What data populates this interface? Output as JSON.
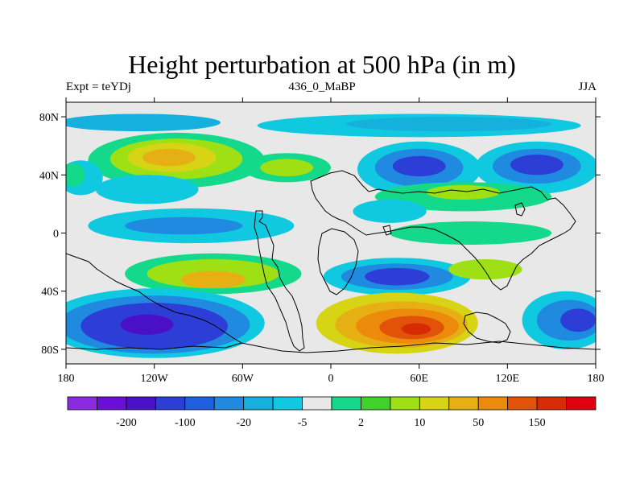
{
  "title": "Height perturbation at 500 hPa (in m)",
  "left_label": "Expt = teYDj",
  "center_label": "436_0_MaBP",
  "right_label": "JJA",
  "map": {
    "lon_range": [
      -180,
      180
    ],
    "lat_range": [
      -90,
      90
    ],
    "lon_ticks": [
      {
        "value": -180,
        "label": "180"
      },
      {
        "value": -120,
        "label": "120W"
      },
      {
        "value": -60,
        "label": "60W"
      },
      {
        "value": 0,
        "label": "0"
      },
      {
        "value": 60,
        "label": "60E"
      },
      {
        "value": 120,
        "label": "120E"
      },
      {
        "value": 180,
        "label": "180"
      }
    ],
    "lat_ticks": [
      {
        "value": 80,
        "label": "80N"
      },
      {
        "value": 40,
        "label": "40N"
      },
      {
        "value": 0,
        "label": "0"
      },
      {
        "value": -40,
        "label": "40S"
      },
      {
        "value": -80,
        "label": "80S"
      }
    ],
    "background_color": "#e8e8e8"
  },
  "colorbar": {
    "colors": [
      "#8a2be2",
      "#6a0fd8",
      "#4a10c8",
      "#2c3ed6",
      "#1f5fe0",
      "#1f8ae0",
      "#16b0dc",
      "#10c8e0",
      "#e8e8e8",
      "#14d98a",
      "#40d228",
      "#9ee014",
      "#d6d414",
      "#e6b014",
      "#ec8a0c",
      "#e25208",
      "#d82a04",
      "#e00010"
    ],
    "labels": [
      {
        "label": "-200",
        "after_box": 1
      },
      {
        "label": "-100",
        "after_box": 3
      },
      {
        "label": "-20",
        "after_box": 5
      },
      {
        "label": "-5",
        "after_box": 7
      },
      {
        "label": "2",
        "after_box": 9
      },
      {
        "label": "10",
        "after_box": 11
      },
      {
        "label": "50",
        "after_box": 13
      },
      {
        "label": "150",
        "after_box": 15
      }
    ]
  },
  "regions": [
    {
      "name": "n-arctic-band",
      "color": "#16b0dc",
      "lon": -130,
      "lat": 76,
      "rx": 55,
      "ry": 6
    },
    {
      "name": "n-arctic-band-east",
      "color": "#10c8e0",
      "lon": 60,
      "lat": 74,
      "rx": 110,
      "ry": 8
    },
    {
      "name": "n-arctic-band-east-inner",
      "color": "#16b0dc",
      "lon": 80,
      "lat": 75,
      "rx": 70,
      "ry": 5
    },
    {
      "name": "npac-ridge-outer",
      "color": "#14d98a",
      "lon": -105,
      "lat": 50,
      "rx": 60,
      "ry": 19
    },
    {
      "name": "npac-ridge-mid",
      "color": "#9ee014",
      "lon": -105,
      "lat": 51,
      "rx": 45,
      "ry": 14
    },
    {
      "name": "npac-ridge-inner",
      "color": "#d6d414",
      "lon": -108,
      "lat": 52,
      "rx": 30,
      "ry": 10
    },
    {
      "name": "npac-ridge-core",
      "color": "#e6b014",
      "lon": -110,
      "lat": 52,
      "rx": 18,
      "ry": 6
    },
    {
      "name": "natl-ridge",
      "color": "#14d98a",
      "lon": -30,
      "lat": 45,
      "rx": 30,
      "ry": 10
    },
    {
      "name": "natl-ridge-inner",
      "color": "#9ee014",
      "lon": -30,
      "lat": 45,
      "rx": 18,
      "ry": 6
    },
    {
      "name": "eur-trough-outer",
      "color": "#10c8e0",
      "lon": 60,
      "lat": 44,
      "rx": 42,
      "ry": 19
    },
    {
      "name": "eur-trough-mid",
      "color": "#1f8ae0",
      "lon": 60,
      "lat": 45,
      "rx": 30,
      "ry": 13
    },
    {
      "name": "eur-trough-core",
      "color": "#2c3ed6",
      "lon": 60,
      "lat": 46,
      "rx": 18,
      "ry": 7
    },
    {
      "name": "asia-trough-outer",
      "color": "#10c8e0",
      "lon": 140,
      "lat": 45,
      "rx": 42,
      "ry": 18
    },
    {
      "name": "asia-trough-mid",
      "color": "#1f8ae0",
      "lon": 140,
      "lat": 46,
      "rx": 30,
      "ry": 12
    },
    {
      "name": "asia-trough-core",
      "color": "#2c3ed6",
      "lon": 140,
      "lat": 47,
      "rx": 18,
      "ry": 7
    },
    {
      "name": "asia-subtrop-ridge",
      "color": "#14d98a",
      "lon": 90,
      "lat": 25,
      "rx": 60,
      "ry": 10
    },
    {
      "name": "asia-subtrop-ridge-inner",
      "color": "#9ee014",
      "lon": 90,
      "lat": 28,
      "rx": 25,
      "ry": 5
    },
    {
      "name": "w-nam-trough",
      "color": "#10c8e0",
      "lon": -170,
      "lat": 38,
      "rx": 15,
      "ry": 12
    },
    {
      "name": "w-nam-ridge",
      "color": "#14d98a",
      "lon": -175,
      "lat": 40,
      "rx": 8,
      "ry": 8
    },
    {
      "name": "npac-sub-trough",
      "color": "#10c8e0",
      "lon": -125,
      "lat": 30,
      "rx": 35,
      "ry": 10
    },
    {
      "name": "tropic-band",
      "color": "#10c8e0",
      "lon": -95,
      "lat": 5,
      "rx": 70,
      "ry": 12
    },
    {
      "name": "tropic-band-inner",
      "color": "#1f8ae0",
      "lon": -100,
      "lat": 5,
      "rx": 40,
      "ry": 6
    },
    {
      "name": "tropic-east",
      "color": "#10c8e0",
      "lon": 40,
      "lat": 15,
      "rx": 25,
      "ry": 8
    },
    {
      "name": "tropic-east-green",
      "color": "#14d98a",
      "lon": 95,
      "lat": 0,
      "rx": 55,
      "ry": 8
    },
    {
      "name": "s-mid-ridge-outer",
      "color": "#14d98a",
      "lon": -80,
      "lat": -28,
      "rx": 60,
      "ry": 14
    },
    {
      "name": "s-mid-ridge-mid",
      "color": "#9ee014",
      "lon": -80,
      "lat": -28,
      "rx": 45,
      "ry": 10
    },
    {
      "name": "s-mid-ridge-inner",
      "color": "#e6b014",
      "lon": -80,
      "lat": -32,
      "rx": 22,
      "ry": 6
    },
    {
      "name": "s-atl-trough-outer",
      "color": "#10c8e0",
      "lon": 45,
      "lat": -30,
      "rx": 50,
      "ry": 13
    },
    {
      "name": "s-atl-trough-mid",
      "color": "#1f8ae0",
      "lon": 45,
      "lat": -30,
      "rx": 38,
      "ry": 9
    },
    {
      "name": "s-atl-trough-core",
      "color": "#2c3ed6",
      "lon": 45,
      "lat": -30,
      "rx": 22,
      "ry": 6
    },
    {
      "name": "s-ind-ridge",
      "color": "#9ee014",
      "lon": 105,
      "lat": -25,
      "rx": 25,
      "ry": 7
    },
    {
      "name": "s-pac-trough-outer",
      "color": "#10c8e0",
      "lon": -120,
      "lat": -62,
      "rx": 75,
      "ry": 24
    },
    {
      "name": "s-pac-trough-mid",
      "color": "#1f8ae0",
      "lon": -120,
      "lat": -63,
      "rx": 65,
      "ry": 20
    },
    {
      "name": "s-pac-trough-inner",
      "color": "#2c3ed6",
      "lon": -120,
      "lat": -64,
      "rx": 50,
      "ry": 16
    },
    {
      "name": "s-pac-trough-core",
      "color": "#4a10c8",
      "lon": -125,
      "lat": -63,
      "rx": 18,
      "ry": 7
    },
    {
      "name": "s-ind-ridge-outer",
      "color": "#d6d414",
      "lon": 45,
      "lat": -62,
      "rx": 55,
      "ry": 21
    },
    {
      "name": "s-ind-ridge-mid",
      "color": "#e6b014",
      "lon": 48,
      "lat": -63,
      "rx": 45,
      "ry": 16
    },
    {
      "name": "s-ind-ridge-inner",
      "color": "#ec8a0c",
      "lon": 52,
      "lat": -64,
      "rx": 35,
      "ry": 12
    },
    {
      "name": "s-ind-ridge-core",
      "color": "#e25208",
      "lon": 55,
      "lat": -65,
      "rx": 22,
      "ry": 8
    },
    {
      "name": "s-ind-ridge-peak",
      "color": "#d82a04",
      "lon": 58,
      "lat": -66,
      "rx": 10,
      "ry": 4
    },
    {
      "name": "s-aus-trough-outer",
      "color": "#10c8e0",
      "lon": 160,
      "lat": -60,
      "rx": 30,
      "ry": 20
    },
    {
      "name": "s-aus-trough-mid",
      "color": "#1f8ae0",
      "lon": 162,
      "lat": -60,
      "rx": 22,
      "ry": 14
    },
    {
      "name": "s-aus-trough-core",
      "color": "#2c3ed6",
      "lon": 168,
      "lat": -60,
      "rx": 12,
      "ry": 8
    }
  ]
}
